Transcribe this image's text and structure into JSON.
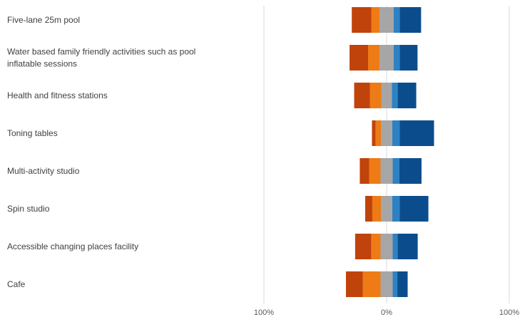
{
  "chart_data": {
    "type": "bar",
    "orientation": "horizontal",
    "stacked": "diverging",
    "categories": [
      "Five-lane 25m pool",
      "Water based family friendly activities such as pool inflatable sessions",
      "Health and fitness stations",
      "Toning tables",
      "Multi-activity studio",
      "Spin studio",
      "Accessible changing places facility",
      "Cafe"
    ],
    "series": [
      {
        "color": "#c0430b",
        "values": [
          15.9,
          15.1,
          12.8,
          2.9,
          7.6,
          5.8,
          13.1,
          13.7
        ]
      },
      {
        "color": "#ee7b15",
        "values": [
          6.7,
          9.3,
          9.3,
          4.4,
          9.3,
          7.0,
          7.6,
          14.5
        ]
      },
      {
        "color": "#a6a6a6",
        "values": [
          11.6,
          11.6,
          8.7,
          9.3,
          9.9,
          9.3,
          9.9,
          9.9
        ]
      },
      {
        "color": "#2e82c3",
        "values": [
          4.9,
          4.9,
          4.7,
          6.1,
          5.5,
          6.1,
          4.1,
          3.8
        ]
      },
      {
        "color": "#0b4d8c",
        "values": [
          17.4,
          14.5,
          15.1,
          27.9,
          18.0,
          23.3,
          16.3,
          8.4
        ]
      }
    ],
    "xaxis_ticks": [
      "100%",
      "0%",
      "100%"
    ],
    "xlim": [
      -100,
      100
    ],
    "grid": true,
    "legend": "none"
  }
}
